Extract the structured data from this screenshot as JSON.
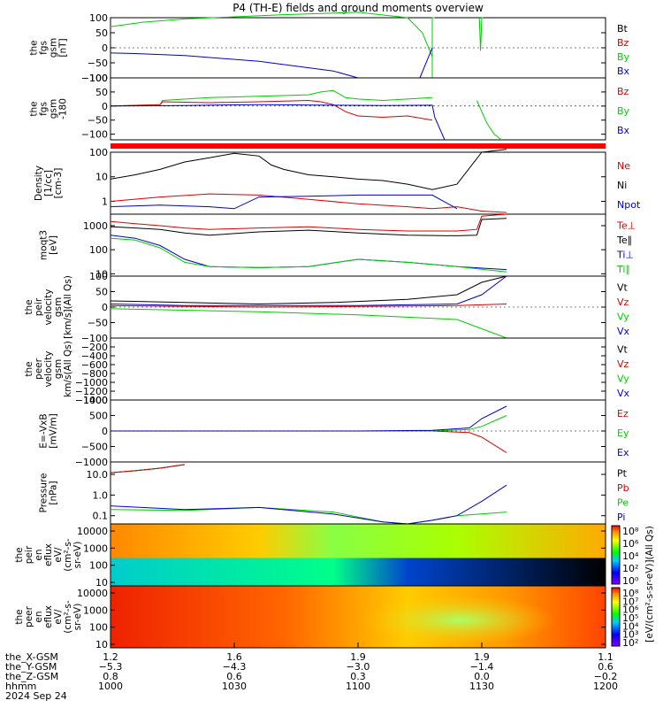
{
  "title": "P4 (TH-E) fields and ground moments overview",
  "colors": {
    "black": "#000000",
    "red": "#dd0000",
    "green": "#00cc00",
    "blue": "#0000cc",
    "sep": "#ff0000"
  },
  "chart_data": [
    {
      "type": "line",
      "ylabel": [
        "the",
        "fgs",
        "gsm",
        "[nT]"
      ],
      "yticks": [
        "100",
        "50",
        "0",
        "−50",
        "−100"
      ],
      "ylim": [
        -100,
        100
      ],
      "legend": [
        {
          "name": "Bt",
          "color": "black"
        },
        {
          "name": "Bz",
          "color": "red"
        },
        {
          "name": "By",
          "color": "green"
        },
        {
          "name": "Bx",
          "color": "blue"
        }
      ],
      "series": [
        {
          "color": "green",
          "t": [
            1000,
            1013,
            1030,
            1050,
            1070,
            1100,
            1120,
            1126,
            1130
          ],
          "v": [
            70,
            85,
            96,
            103,
            110,
            118,
            100,
            50,
            -30
          ]
        },
        {
          "color": "green",
          "t": [
            1130,
            1130,
            1131
          ],
          "v": [
            -100,
            100,
            100
          ]
        },
        {
          "color": "green",
          "t": [
            1149,
            1149.5,
            1150,
            1150.5
          ],
          "v": [
            100,
            -10,
            100,
            100
          ]
        },
        {
          "color": "blue",
          "t": [
            1000,
            1010,
            1030,
            1060,
            1090,
            1100
          ],
          "v": [
            -17,
            -19,
            -26,
            -45,
            -77,
            -100
          ]
        },
        {
          "color": "blue",
          "t": [
            1125,
            1128,
            1130
          ],
          "v": [
            -100,
            -40,
            0
          ]
        }
      ]
    },
    {
      "type": "line",
      "ylabel": [
        "the",
        "fgs",
        "gsm",
        "-180"
      ],
      "yticks": [
        "100",
        "50",
        "0",
        "−50",
        "−100"
      ],
      "ylim": [
        -120,
        100
      ],
      "legend": [
        {
          "name": "Bz",
          "color": "red"
        },
        {
          "name": "By",
          "color": "green"
        },
        {
          "name": "Bx",
          "color": "blue"
        }
      ],
      "series": [
        {
          "color": "green",
          "t": [
            1000,
            1020,
            1021,
            1040,
            1060,
            1080,
            1085,
            1090,
            1095,
            1100,
            1110,
            1120,
            1130
          ],
          "v": [
            0,
            5,
            20,
            30,
            35,
            40,
            50,
            55,
            30,
            25,
            20,
            25,
            30
          ]
        },
        {
          "color": "green",
          "t": [
            1148,
            1150,
            1152,
            1155,
            1158
          ],
          "v": [
            20,
            -20,
            -60,
            -100,
            -120
          ]
        },
        {
          "color": "red",
          "t": [
            1000,
            1020,
            1021,
            1040,
            1060,
            1080,
            1085,
            1090,
            1095,
            1100,
            1110,
            1120,
            1130
          ],
          "v": [
            0,
            5,
            15,
            12,
            15,
            20,
            15,
            5,
            -20,
            -35,
            -40,
            -35,
            -50
          ]
        },
        {
          "color": "blue",
          "t": [
            1000,
            1030,
            1060,
            1090,
            1110,
            1130,
            1131,
            1135
          ],
          "v": [
            0,
            2,
            5,
            3,
            2,
            3,
            -40,
            -120
          ]
        }
      ]
    },
    {
      "type": "line",
      "scale": "log",
      "ylabel": [
        "Density",
        "[1/cc]",
        "[cm-3]"
      ],
      "yticks": [
        "100",
        "10",
        "1"
      ],
      "ylim": [
        0.3,
        100
      ],
      "legend": [
        {
          "name": "Ne",
          "color": "red"
        },
        {
          "name": "Ni",
          "color": "black"
        },
        {
          "name": "Npot",
          "color": "blue"
        }
      ],
      "series": [
        {
          "color": "black",
          "t": [
            1000,
            1010,
            1020,
            1030,
            1040,
            1050,
            1060,
            1065,
            1070,
            1080,
            1090,
            1100,
            1110,
            1120,
            1130,
            1140,
            1150,
            1160
          ],
          "v": [
            8,
            12,
            20,
            40,
            60,
            90,
            70,
            30,
            20,
            12,
            10,
            8,
            7,
            5,
            3,
            5,
            100,
            130
          ]
        },
        {
          "color": "red",
          "t": [
            1000,
            1020,
            1040,
            1060,
            1080,
            1100,
            1120,
            1130,
            1140,
            1150,
            1160
          ],
          "v": [
            1,
            1.5,
            2,
            1.8,
            1.2,
            0.8,
            0.6,
            0.5,
            0.6,
            0.4,
            0.35
          ]
        },
        {
          "color": "blue",
          "t": [
            1000,
            1020,
            1040,
            1050,
            1060,
            1080,
            1100,
            1130,
            1140
          ],
          "v": [
            0.6,
            0.7,
            0.6,
            0.5,
            1.5,
            1.6,
            1.8,
            1.8,
            0.5
          ]
        }
      ]
    },
    {
      "type": "line",
      "scale": "log",
      "ylabel": [
        "moqt3",
        "[eV]"
      ],
      "yticks": [
        "1000",
        "100",
        "10"
      ],
      "ylim": [
        8,
        3000
      ],
      "legend": [
        {
          "name": "Te⊥",
          "color": "red"
        },
        {
          "name": "Te∥",
          "color": "black"
        },
        {
          "name": "Ti⊥",
          "color": "blue"
        },
        {
          "name": "Ti∥",
          "color": "green"
        }
      ],
      "series": [
        {
          "color": "red",
          "t": [
            1000,
            1010,
            1020,
            1030,
            1040,
            1060,
            1080,
            1100,
            1120,
            1140,
            1148,
            1150,
            1160
          ],
          "v": [
            1500,
            1200,
            1000,
            800,
            700,
            800,
            900,
            700,
            600,
            600,
            700,
            2500,
            3000
          ]
        },
        {
          "color": "black",
          "t": [
            1000,
            1010,
            1020,
            1030,
            1040,
            1060,
            1080,
            1100,
            1120,
            1140,
            1148,
            1150,
            1160
          ],
          "v": [
            900,
            800,
            700,
            500,
            400,
            550,
            650,
            500,
            400,
            380,
            400,
            1800,
            2000
          ]
        },
        {
          "color": "blue",
          "t": [
            1000,
            1010,
            1020,
            1030,
            1040,
            1060,
            1080,
            1100,
            1120,
            1140,
            1160
          ],
          "v": [
            400,
            300,
            150,
            40,
            20,
            18,
            20,
            40,
            30,
            20,
            15
          ]
        },
        {
          "color": "green",
          "t": [
            1000,
            1010,
            1020,
            1030,
            1040,
            1060,
            1080,
            1100,
            1120,
            1140,
            1160
          ],
          "v": [
            300,
            250,
            120,
            30,
            20,
            18,
            20,
            40,
            30,
            20,
            12
          ]
        }
      ]
    },
    {
      "type": "line",
      "ylabel": [
        "the",
        "peir",
        "velocity",
        "gsm",
        "[km/s](All Qs)"
      ],
      "yticks": [
        "100",
        "50",
        "0",
        "−50",
        "−100"
      ],
      "ylim": [
        -100,
        100
      ],
      "legend": [
        {
          "name": "Vt",
          "color": "black"
        },
        {
          "name": "Vz",
          "color": "red"
        },
        {
          "name": "Vy",
          "color": "green"
        },
        {
          "name": "Vx",
          "color": "blue"
        }
      ],
      "series": [
        {
          "color": "black",
          "t": [
            1000,
            1030,
            1060,
            1090,
            1120,
            1140,
            1150,
            1160
          ],
          "v": [
            20,
            15,
            10,
            15,
            25,
            40,
            80,
            100
          ]
        },
        {
          "color": "red",
          "t": [
            1000,
            1030,
            1060,
            1100,
            1140,
            1160
          ],
          "v": [
            5,
            2,
            0,
            2,
            5,
            10
          ]
        },
        {
          "color": "green",
          "t": [
            1000,
            1030,
            1060,
            1100,
            1140,
            1160
          ],
          "v": [
            -5,
            -10,
            -15,
            -25,
            -40,
            -100
          ]
        },
        {
          "color": "blue",
          "t": [
            1000,
            1030,
            1060,
            1100,
            1140,
            1150,
            1160
          ],
          "v": [
            10,
            5,
            5,
            5,
            10,
            40,
            100
          ]
        }
      ]
    },
    {
      "type": "line",
      "ylabel": [
        "the",
        "peer",
        "velocity",
        "gsm",
        "km/s(All Qs)"
      ],
      "yticks": [
        "−200",
        "−400",
        "−600",
        "−800",
        "−1000",
        "−1200",
        "−1400"
      ],
      "ylim": [
        -1400,
        0
      ],
      "legend": [
        {
          "name": "Vt",
          "color": "black"
        },
        {
          "name": "Vz",
          "color": "red"
        },
        {
          "name": "Vy",
          "color": "green"
        },
        {
          "name": "Vx",
          "color": "blue"
        }
      ],
      "series": []
    },
    {
      "type": "line",
      "ylabel": [
        "E=-VxB",
        "[mV/m]"
      ],
      "yticks": [
        "1000",
        "500",
        "0",
        "−500",
        "−1000"
      ],
      "ylim": [
        -1000,
        1000
      ],
      "legend": [
        {
          "name": "Ez",
          "color": "red"
        },
        {
          "name": "Ey",
          "color": "green"
        },
        {
          "name": "Ex",
          "color": "blue"
        }
      ],
      "series": [
        {
          "color": "red",
          "t": [
            1000,
            1100,
            1130,
            1145,
            1150,
            1160
          ],
          "v": [
            0,
            0,
            0,
            -50,
            -200,
            -700
          ]
        },
        {
          "color": "green",
          "t": [
            1000,
            1100,
            1130,
            1145,
            1150,
            1160
          ],
          "v": [
            0,
            0,
            0,
            50,
            150,
            500
          ]
        },
        {
          "color": "blue",
          "t": [
            1000,
            1100,
            1130,
            1145,
            1150,
            1160
          ],
          "v": [
            0,
            0,
            20,
            100,
            400,
            800
          ]
        }
      ]
    },
    {
      "type": "line",
      "scale": "log",
      "ylabel": [
        "Pressure",
        "[nPa]"
      ],
      "yticks": [
        "10.0",
        "1.0",
        "0.1"
      ],
      "ylim": [
        0.04,
        40
      ],
      "legend": [
        {
          "name": "Pt",
          "color": "black"
        },
        {
          "name": "Pb",
          "color": "red"
        },
        {
          "name": "Pe",
          "color": "green"
        },
        {
          "name": "Pi",
          "color": "blue"
        }
      ],
      "series": [
        {
          "color": "black",
          "t": [
            1000,
            1010,
            1020,
            1030
          ],
          "v": [
            12,
            15,
            20,
            30
          ]
        },
        {
          "color": "red",
          "t": [
            1000,
            1010,
            1020,
            1030
          ],
          "v": [
            12,
            15,
            20,
            30
          ]
        },
        {
          "color": "green",
          "t": [
            1000,
            1030,
            1060,
            1090,
            1110,
            1120,
            1130,
            1140,
            1160
          ],
          "v": [
            0.2,
            0.18,
            0.25,
            0.15,
            0.05,
            0.04,
            0.06,
            0.1,
            0.15
          ]
        },
        {
          "color": "blue",
          "t": [
            1000,
            1030,
            1060,
            1090,
            1110,
            1120,
            1130,
            1140,
            1150,
            1160
          ],
          "v": [
            0.3,
            0.2,
            0.25,
            0.12,
            0.05,
            0.04,
            0.06,
            0.1,
            0.5,
            3
          ]
        }
      ]
    },
    {
      "type": "heatmap",
      "ylabel": [
        "the",
        "peir",
        "en",
        "eflux",
        "eV/",
        "(cm²-s-",
        "sr-eV)"
      ],
      "yticks": [
        "10000",
        "1000",
        "100",
        "10"
      ],
      "colorbar": {
        "ticks": [
          "10⁸",
          "10⁶",
          "10⁴",
          "10²",
          "10⁰"
        ],
        "label": "[eV/(cm²-s-sr-eV)](All Qs)"
      }
    },
    {
      "type": "heatmap",
      "ylabel": [
        "the",
        "peer",
        "en",
        "eflux",
        "eV/",
        "(cm²-s-",
        "sr-eV)"
      ],
      "yticks": [
        "10000",
        "1000",
        "100",
        "10"
      ],
      "colorbar": {
        "ticks": [
          "10⁸",
          "10⁷",
          "10⁶",
          "10⁵",
          "10⁴",
          "10³",
          "10²"
        ],
        "label": ""
      }
    }
  ],
  "ephemeris": {
    "rows": [
      {
        "label": "the_X-GSM",
        "values": [
          "1.2",
          "1.6",
          "1.9",
          "1.9",
          "1.1"
        ]
      },
      {
        "label": "the_Y-GSM",
        "values": [
          "−5.3",
          "−4.3",
          "−3.0",
          "−1.4",
          "0.6"
        ]
      },
      {
        "label": "the_Z-GSM",
        "values": [
          "0.8",
          "0.6",
          "0.3",
          "0.0",
          "−0.2"
        ]
      },
      {
        "label": "hhmm",
        "values": [
          "1000",
          "1030",
          "1100",
          "1130",
          "1200"
        ]
      }
    ],
    "date": "2024 Sep 24"
  }
}
